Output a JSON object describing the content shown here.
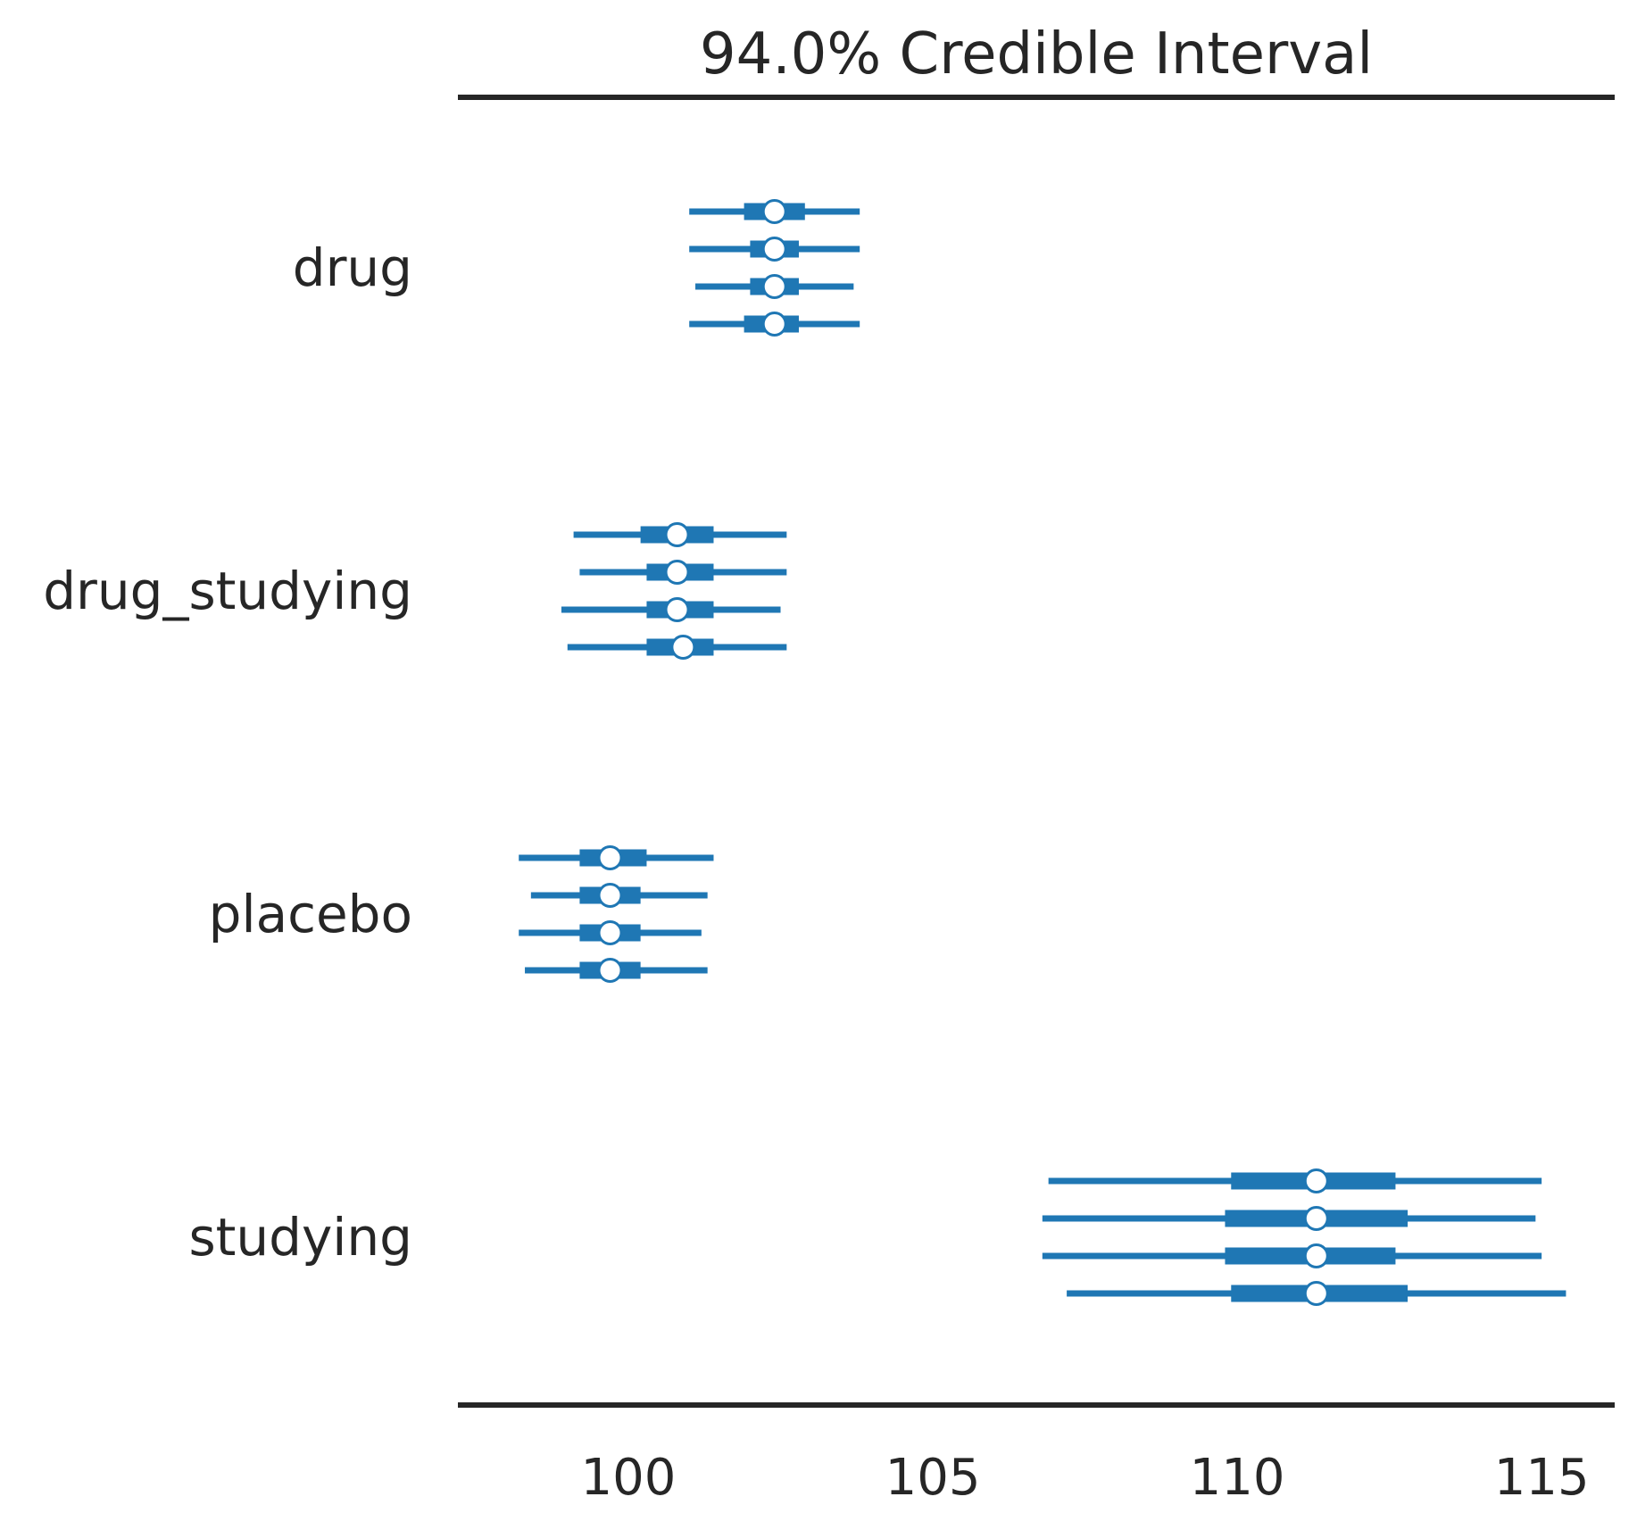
{
  "chart_data": {
    "type": "forest",
    "title": "94.0% Credible Interval",
    "xlabel": "",
    "ylabel": "",
    "xlim": [
      97.2,
      116.2
    ],
    "xticks": [
      100,
      105,
      110,
      115
    ],
    "xtick_labels": [
      "100",
      "105",
      "110",
      "115"
    ],
    "grid": false,
    "colors": {
      "line": "#1f77b4",
      "axis": "#262626",
      "marker_fill": "#ffffff"
    },
    "variables": [
      {
        "name": "drug",
        "chains": [
          {
            "hdi94": [
              101.0,
              103.8
            ],
            "hdi50": [
              101.9,
              102.9
            ],
            "median": 102.4
          },
          {
            "hdi94": [
              101.0,
              103.8
            ],
            "hdi50": [
              102.0,
              102.8
            ],
            "median": 102.4
          },
          {
            "hdi94": [
              101.1,
              103.7
            ],
            "hdi50": [
              102.0,
              102.8
            ],
            "median": 102.4
          },
          {
            "hdi94": [
              101.0,
              103.8
            ],
            "hdi50": [
              101.9,
              102.8
            ],
            "median": 102.4
          }
        ]
      },
      {
        "name": "drug_studying",
        "chains": [
          {
            "hdi94": [
              99.1,
              102.6
            ],
            "hdi50": [
              100.2,
              101.4
            ],
            "median": 100.8
          },
          {
            "hdi94": [
              99.2,
              102.6
            ],
            "hdi50": [
              100.3,
              101.4
            ],
            "median": 100.8
          },
          {
            "hdi94": [
              98.9,
              102.5
            ],
            "hdi50": [
              100.3,
              101.4
            ],
            "median": 100.8
          },
          {
            "hdi94": [
              99.0,
              102.6
            ],
            "hdi50": [
              100.3,
              101.4
            ],
            "median": 100.9
          }
        ]
      },
      {
        "name": "placebo",
        "chains": [
          {
            "hdi94": [
              98.2,
              101.4
            ],
            "hdi50": [
              99.2,
              100.3
            ],
            "median": 99.7
          },
          {
            "hdi94": [
              98.4,
              101.3
            ],
            "hdi50": [
              99.2,
              100.2
            ],
            "median": 99.7
          },
          {
            "hdi94": [
              98.2,
              101.2
            ],
            "hdi50": [
              99.2,
              100.2
            ],
            "median": 99.7
          },
          {
            "hdi94": [
              98.3,
              101.3
            ],
            "hdi50": [
              99.2,
              100.2
            ],
            "median": 99.7
          }
        ]
      },
      {
        "name": "studying",
        "chains": [
          {
            "hdi94": [
              106.9,
              115.0
            ],
            "hdi50": [
              109.9,
              112.6
            ],
            "median": 111.3
          },
          {
            "hdi94": [
              106.8,
              114.9
            ],
            "hdi50": [
              109.8,
              112.8
            ],
            "median": 111.3
          },
          {
            "hdi94": [
              106.8,
              115.0
            ],
            "hdi50": [
              109.8,
              112.6
            ],
            "median": 111.3
          },
          {
            "hdi94": [
              107.2,
              115.4
            ],
            "hdi50": [
              109.9,
              112.8
            ],
            "median": 111.3
          }
        ]
      }
    ]
  }
}
